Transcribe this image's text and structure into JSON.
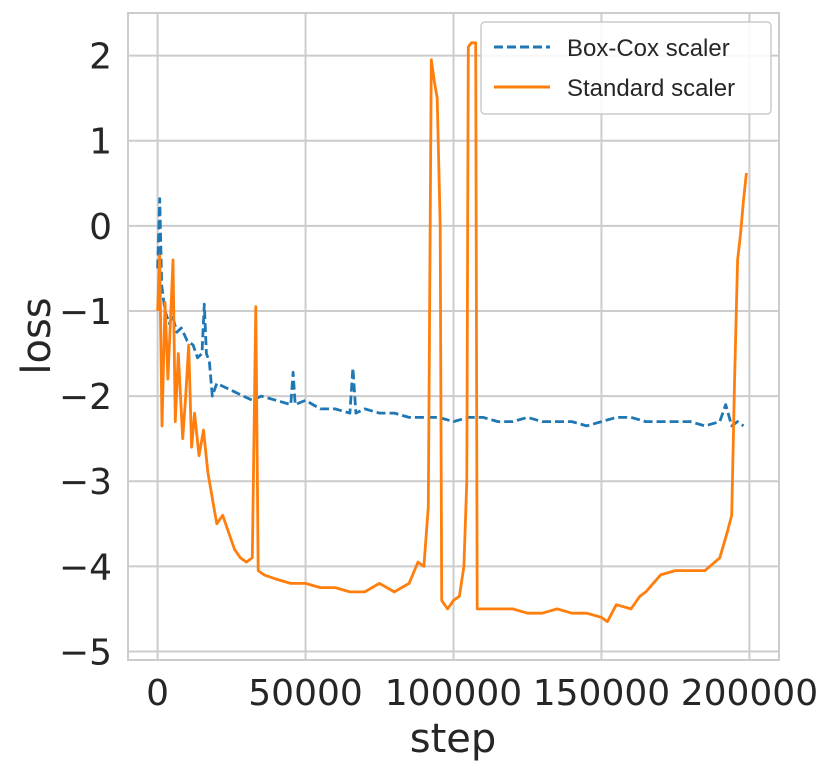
{
  "chart_data": {
    "type": "line",
    "xlabel": "step",
    "ylabel": "loss",
    "xlim": [
      -10000,
      210000
    ],
    "ylim": [
      -5.1,
      2.5
    ],
    "xticks": [
      0,
      50000,
      100000,
      150000,
      200000
    ],
    "xtick_labels": [
      "0",
      "50000",
      "100000",
      "150000",
      "200000"
    ],
    "yticks": [
      -5,
      -4,
      -3,
      -2,
      -1,
      0,
      1,
      2
    ],
    "ytick_labels": [
      "−5",
      "−4",
      "−3",
      "−2",
      "−1",
      "0",
      "1",
      "2"
    ],
    "grid": true,
    "legend_position": "top-right",
    "series": [
      {
        "name": "Box-Cox scaler",
        "color": "#1f77b4",
        "dash": "dashed",
        "points": [
          [
            0,
            -0.5
          ],
          [
            700,
            0.32
          ],
          [
            1400,
            -0.7
          ],
          [
            2500,
            -1.0
          ],
          [
            4000,
            -1.15
          ],
          [
            5000,
            -1.05
          ],
          [
            6500,
            -1.25
          ],
          [
            8000,
            -1.2
          ],
          [
            10000,
            -1.35
          ],
          [
            12000,
            -1.4
          ],
          [
            13500,
            -1.55
          ],
          [
            15000,
            -1.5
          ],
          [
            15800,
            -0.92
          ],
          [
            16500,
            -1.5
          ],
          [
            17500,
            -1.6
          ],
          [
            18500,
            -2.0
          ],
          [
            20000,
            -1.85
          ],
          [
            23000,
            -1.9
          ],
          [
            26000,
            -1.95
          ],
          [
            29000,
            -2.0
          ],
          [
            32000,
            -2.05
          ],
          [
            35000,
            -2.0
          ],
          [
            40000,
            -2.05
          ],
          [
            45000,
            -2.1
          ],
          [
            45800,
            -1.72
          ],
          [
            46500,
            -2.1
          ],
          [
            50000,
            -2.05
          ],
          [
            55000,
            -2.15
          ],
          [
            60000,
            -2.15
          ],
          [
            65000,
            -2.2
          ],
          [
            66000,
            -1.67
          ],
          [
            67000,
            -2.2
          ],
          [
            70000,
            -2.15
          ],
          [
            75000,
            -2.2
          ],
          [
            80000,
            -2.2
          ],
          [
            85000,
            -2.25
          ],
          [
            90000,
            -2.25
          ],
          [
            95000,
            -2.25
          ],
          [
            100000,
            -2.3
          ],
          [
            105000,
            -2.25
          ],
          [
            110000,
            -2.25
          ],
          [
            115000,
            -2.3
          ],
          [
            120000,
            -2.3
          ],
          [
            125000,
            -2.25
          ],
          [
            130000,
            -2.3
          ],
          [
            135000,
            -2.3
          ],
          [
            140000,
            -2.3
          ],
          [
            145000,
            -2.35
          ],
          [
            150000,
            -2.3
          ],
          [
            155000,
            -2.25
          ],
          [
            160000,
            -2.25
          ],
          [
            165000,
            -2.3
          ],
          [
            170000,
            -2.3
          ],
          [
            175000,
            -2.3
          ],
          [
            180000,
            -2.3
          ],
          [
            185000,
            -2.35
          ],
          [
            190000,
            -2.3
          ],
          [
            192000,
            -2.1
          ],
          [
            194000,
            -2.35
          ],
          [
            196000,
            -2.3
          ],
          [
            198000,
            -2.35
          ]
        ]
      },
      {
        "name": "Standard scaler",
        "color": "#ff7f0e",
        "dash": "solid",
        "points": [
          [
            0,
            -1.0
          ],
          [
            700,
            -0.35
          ],
          [
            1500,
            -2.35
          ],
          [
            2500,
            -0.9
          ],
          [
            3500,
            -1.8
          ],
          [
            4500,
            -1.0
          ],
          [
            5200,
            -0.4
          ],
          [
            6000,
            -2.3
          ],
          [
            7000,
            -1.5
          ],
          [
            8500,
            -2.5
          ],
          [
            9500,
            -2.0
          ],
          [
            10500,
            -1.4
          ],
          [
            11500,
            -2.6
          ],
          [
            12500,
            -2.2
          ],
          [
            14000,
            -2.7
          ],
          [
            15500,
            -2.4
          ],
          [
            17000,
            -2.9
          ],
          [
            19000,
            -3.3
          ],
          [
            20000,
            -3.5
          ],
          [
            22000,
            -3.4
          ],
          [
            24000,
            -3.6
          ],
          [
            26000,
            -3.8
          ],
          [
            28000,
            -3.9
          ],
          [
            30000,
            -3.95
          ],
          [
            32000,
            -3.9
          ],
          [
            33200,
            -0.95
          ],
          [
            34000,
            -4.05
          ],
          [
            36000,
            -4.1
          ],
          [
            40000,
            -4.15
          ],
          [
            45000,
            -4.2
          ],
          [
            50000,
            -4.2
          ],
          [
            55000,
            -4.25
          ],
          [
            60000,
            -4.25
          ],
          [
            65000,
            -4.3
          ],
          [
            70000,
            -4.3
          ],
          [
            75000,
            -4.2
          ],
          [
            80000,
            -4.3
          ],
          [
            85000,
            -4.2
          ],
          [
            88000,
            -3.95
          ],
          [
            90000,
            -4.0
          ],
          [
            91500,
            -3.3
          ],
          [
            92500,
            1.95
          ],
          [
            93500,
            1.7
          ],
          [
            94500,
            1.5
          ],
          [
            95500,
            0.0
          ],
          [
            96000,
            -4.4
          ],
          [
            98000,
            -4.5
          ],
          [
            100000,
            -4.4
          ],
          [
            102000,
            -4.35
          ],
          [
            103500,
            -4.0
          ],
          [
            104500,
            -3.0
          ],
          [
            105000,
            2.1
          ],
          [
            106000,
            2.15
          ],
          [
            107500,
            2.15
          ],
          [
            108000,
            -4.5
          ],
          [
            110000,
            -4.5
          ],
          [
            115000,
            -4.5
          ],
          [
            120000,
            -4.5
          ],
          [
            125000,
            -4.55
          ],
          [
            130000,
            -4.55
          ],
          [
            135000,
            -4.5
          ],
          [
            140000,
            -4.55
          ],
          [
            145000,
            -4.55
          ],
          [
            150000,
            -4.6
          ],
          [
            152000,
            -4.65
          ],
          [
            155000,
            -4.45
          ],
          [
            160000,
            -4.5
          ],
          [
            163000,
            -4.35
          ],
          [
            165000,
            -4.3
          ],
          [
            170000,
            -4.1
          ],
          [
            175000,
            -4.05
          ],
          [
            180000,
            -4.05
          ],
          [
            185000,
            -4.05
          ],
          [
            190000,
            -3.9
          ],
          [
            192500,
            -3.6
          ],
          [
            194000,
            -3.4
          ],
          [
            195000,
            -1.8
          ],
          [
            196000,
            -0.4
          ],
          [
            197000,
            -0.1
          ],
          [
            198000,
            0.3
          ],
          [
            199000,
            0.62
          ]
        ]
      }
    ]
  }
}
